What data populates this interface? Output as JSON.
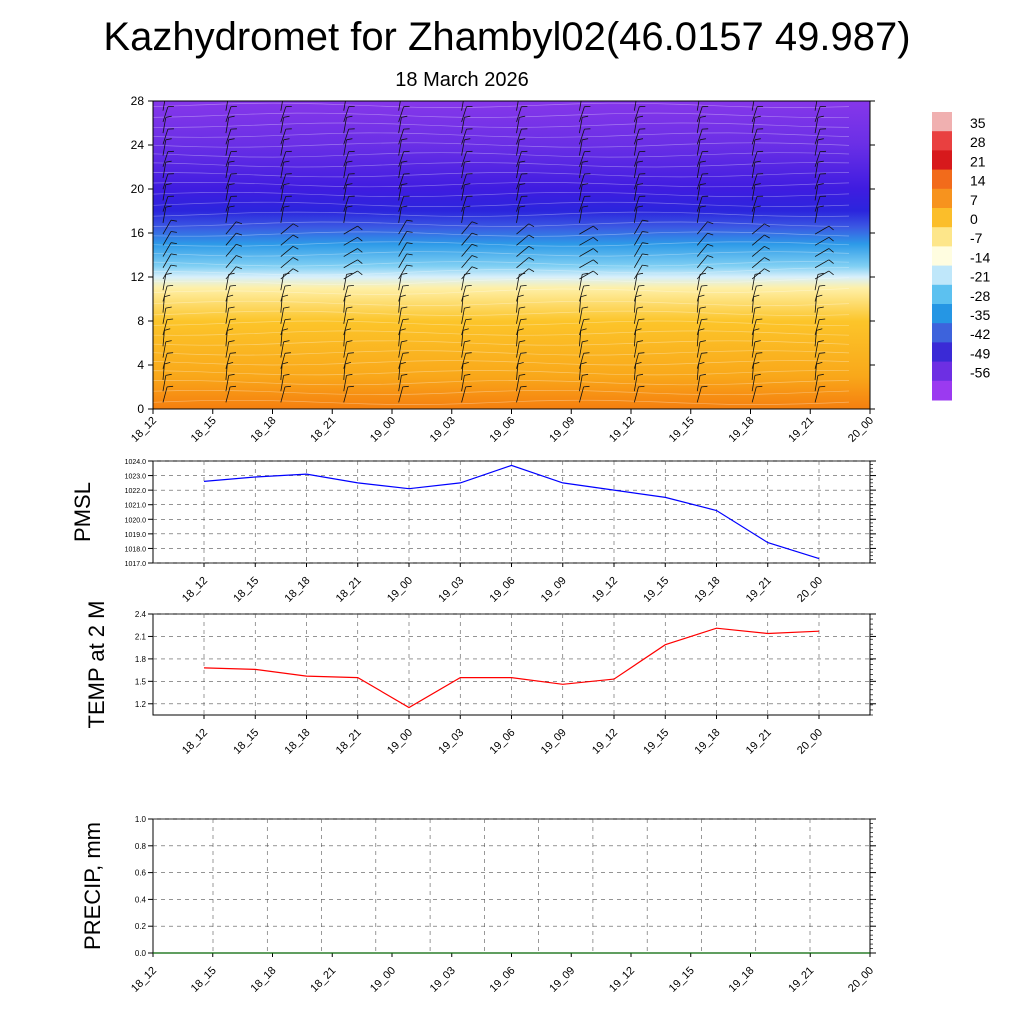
{
  "title": "Kazhydromet for Zhambyl02(46.0157 49.987)",
  "subtitle": "18 March 2026",
  "chart_data": [
    {
      "type": "heatmap",
      "name": "cross-section",
      "ylim": [
        0,
        28
      ],
      "yticks": [
        "0",
        "4",
        "8",
        "12",
        "16",
        "20",
        "24",
        "28"
      ],
      "xticks": [
        "18_12",
        "18_15",
        "18_18",
        "18_21",
        "19_00",
        "19_03",
        "19_06",
        "19_09",
        "19_12",
        "19_15",
        "19_18",
        "19_21",
        "20_00"
      ],
      "color_stops": [
        {
          "level": 0,
          "color": "#f57f0f"
        },
        {
          "level": 3,
          "color": "#f9a81a"
        },
        {
          "level": 8,
          "color": "#fcc52a"
        },
        {
          "level": 11,
          "color": "#fef0a8"
        },
        {
          "level": 12,
          "color": "#d8f0fb"
        },
        {
          "level": 13,
          "color": "#7fcff3"
        },
        {
          "level": 15,
          "color": "#2d9ae8"
        },
        {
          "level": 16.5,
          "color": "#3b5ae3"
        },
        {
          "level": 18,
          "color": "#2b25dd"
        },
        {
          "level": 20,
          "color": "#3f1ce0"
        },
        {
          "level": 24,
          "color": "#6a2fe6"
        },
        {
          "level": 28,
          "color": "#8637ea"
        }
      ],
      "colorbar_labels": [
        "35",
        "28",
        "21",
        "14",
        "7",
        "0",
        "-7",
        "-14",
        "-21",
        "-28",
        "-35",
        "-42",
        "-49",
        "-56"
      ],
      "colorbar_colors": [
        "#f0b0b0",
        "#e94040",
        "#d7191c",
        "#f26b1b",
        "#f7931e",
        "#fbbe2a",
        "#fde68a",
        "#fffde0",
        "#bfe7fa",
        "#5cc1f0",
        "#2596e4",
        "#3d63dc",
        "#3a2ad6",
        "#6d2fe3",
        "#9b3af0"
      ]
    },
    {
      "type": "line",
      "name": "pmsl",
      "ylabel": "PMSL",
      "ylim": [
        1017.0,
        1024.0
      ],
      "yticks": [
        "1017.0",
        "1018.0",
        "1019.0",
        "1020.0",
        "1021.0",
        "1022.0",
        "1023.0",
        "1024.0"
      ],
      "categories": [
        "18_12",
        "18_15",
        "18_18",
        "18_21",
        "19_00",
        "19_03",
        "19_06",
        "19_09",
        "19_12",
        "19_15",
        "19_18",
        "19_21",
        "20_00"
      ],
      "values": [
        1022.6,
        1022.9,
        1023.1,
        1022.5,
        1022.1,
        1022.5,
        1023.7,
        1022.5,
        1022.0,
        1021.5,
        1020.6,
        1018.4,
        1017.3
      ],
      "color": "#0000ff"
    },
    {
      "type": "line",
      "name": "temp",
      "ylabel": "TEMP at 2 M",
      "ylim": [
        1.05,
        2.4
      ],
      "yticks": [
        "1.2",
        "1.5",
        "1.8",
        "2.1",
        "2.4"
      ],
      "categories": [
        "18_12",
        "18_15",
        "18_18",
        "18_21",
        "19_00",
        "19_03",
        "19_06",
        "19_09",
        "19_12",
        "19_15",
        "19_18",
        "19_21",
        "20_00"
      ],
      "values": [
        1.68,
        1.66,
        1.57,
        1.55,
        1.15,
        1.55,
        1.55,
        1.46,
        1.53,
        1.99,
        2.21,
        2.14,
        2.17
      ],
      "color": "#ff0000"
    },
    {
      "type": "line",
      "name": "precip",
      "ylabel": "PRECIP, mm",
      "ylim": [
        0.0,
        1.0
      ],
      "yticks": [
        "0.0",
        "0.2",
        "0.4",
        "0.6",
        "0.8",
        "1.0"
      ],
      "xticks": [
        "18_12",
        "18_15",
        "18_18",
        "18_21",
        "19_00",
        "19_03",
        "19_06",
        "19_09",
        "19_12",
        "19_15",
        "19_18",
        "19_21",
        "20_00"
      ],
      "values": [
        0,
        0,
        0,
        0,
        0,
        0,
        0,
        0,
        0,
        0,
        0,
        0,
        0
      ],
      "color": "#006400"
    }
  ]
}
